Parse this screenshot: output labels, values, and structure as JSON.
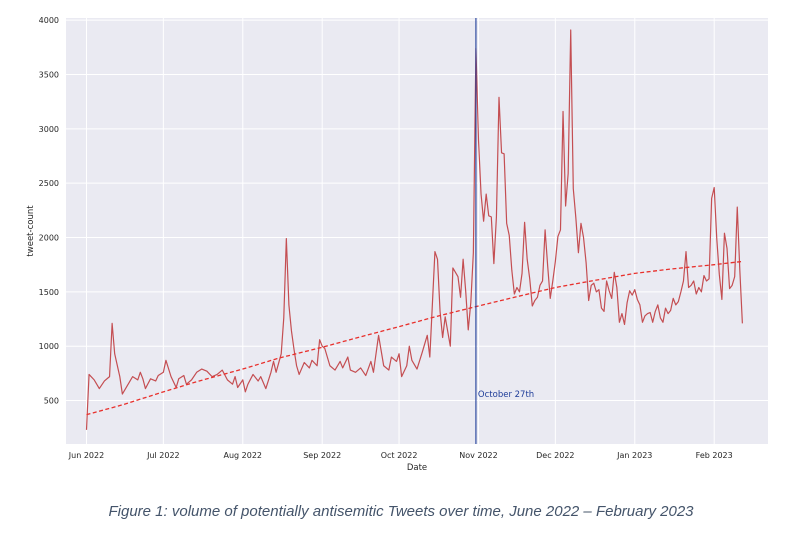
{
  "caption": "Figure 1: volume of potentially antisemitic Tweets over time, June 2022 – February 2023",
  "chart_data": {
    "type": "line",
    "title": "",
    "xlabel": "Date",
    "ylabel": "tweet-count",
    "x_ticks": [
      "2022-06-01",
      "2022-07-01",
      "2022-08-01",
      "2022-09-01",
      "2022-10-01",
      "2022-11-01",
      "2022-12-01",
      "2023-01-01",
      "2023-02-01"
    ],
    "x_tick_labels": [
      "Jun 2022",
      "Jul 2022",
      "Aug 2022",
      "Sep 2022",
      "Oct 2022",
      "Nov 2022",
      "Dec 2022",
      "Jan 2023",
      "Feb 2023"
    ],
    "y_ticks": [
      500,
      1000,
      1500,
      2000,
      2500,
      3000,
      3500,
      4000
    ],
    "xlim": [
      "2022-05-24",
      "2023-02-22"
    ],
    "ylim": [
      100,
      4020
    ],
    "grid": true,
    "background": "#eaeaf2",
    "series": [
      {
        "style": "solid",
        "color": "#c44e52",
        "points": [
          [
            "2022-06-01",
            230
          ],
          [
            "2022-06-02",
            740
          ],
          [
            "2022-06-04",
            690
          ],
          [
            "2022-06-06",
            610
          ],
          [
            "2022-06-08",
            680
          ],
          [
            "2022-06-10",
            720
          ],
          [
            "2022-06-11",
            1210
          ],
          [
            "2022-06-12",
            930
          ],
          [
            "2022-06-14",
            720
          ],
          [
            "2022-06-15",
            560
          ],
          [
            "2022-06-17",
            640
          ],
          [
            "2022-06-19",
            720
          ],
          [
            "2022-06-21",
            690
          ],
          [
            "2022-06-22",
            760
          ],
          [
            "2022-06-23",
            700
          ],
          [
            "2022-06-24",
            610
          ],
          [
            "2022-06-26",
            700
          ],
          [
            "2022-06-28",
            680
          ],
          [
            "2022-06-29",
            730
          ],
          [
            "2022-07-01",
            760
          ],
          [
            "2022-07-02",
            870
          ],
          [
            "2022-07-04",
            720
          ],
          [
            "2022-07-06",
            620
          ],
          [
            "2022-07-07",
            700
          ],
          [
            "2022-07-09",
            730
          ],
          [
            "2022-07-10",
            650
          ],
          [
            "2022-07-12",
            690
          ],
          [
            "2022-07-14",
            760
          ],
          [
            "2022-07-16",
            790
          ],
          [
            "2022-07-18",
            770
          ],
          [
            "2022-07-20",
            720
          ],
          [
            "2022-07-22",
            740
          ],
          [
            "2022-07-24",
            780
          ],
          [
            "2022-07-26",
            690
          ],
          [
            "2022-07-28",
            650
          ],
          [
            "2022-07-29",
            720
          ],
          [
            "2022-07-30",
            620
          ],
          [
            "2022-08-01",
            690
          ],
          [
            "2022-08-02",
            580
          ],
          [
            "2022-08-03",
            650
          ],
          [
            "2022-08-05",
            740
          ],
          [
            "2022-08-07",
            680
          ],
          [
            "2022-08-08",
            720
          ],
          [
            "2022-08-10",
            610
          ],
          [
            "2022-08-12",
            760
          ],
          [
            "2022-08-13",
            860
          ],
          [
            "2022-08-14",
            760
          ],
          [
            "2022-08-16",
            930
          ],
          [
            "2022-08-17",
            1260
          ],
          [
            "2022-08-18",
            1990
          ],
          [
            "2022-08-19",
            1380
          ],
          [
            "2022-08-20",
            1140
          ],
          [
            "2022-08-21",
            970
          ],
          [
            "2022-08-22",
            820
          ],
          [
            "2022-08-23",
            740
          ],
          [
            "2022-08-25",
            850
          ],
          [
            "2022-08-27",
            800
          ],
          [
            "2022-08-28",
            870
          ],
          [
            "2022-08-30",
            820
          ],
          [
            "2022-08-31",
            1060
          ],
          [
            "2022-09-01",
            1000
          ],
          [
            "2022-09-02",
            980
          ],
          [
            "2022-09-04",
            820
          ],
          [
            "2022-09-06",
            780
          ],
          [
            "2022-09-08",
            860
          ],
          [
            "2022-09-09",
            800
          ],
          [
            "2022-09-11",
            900
          ],
          [
            "2022-09-12",
            780
          ],
          [
            "2022-09-14",
            760
          ],
          [
            "2022-09-16",
            800
          ],
          [
            "2022-09-18",
            730
          ],
          [
            "2022-09-20",
            860
          ],
          [
            "2022-09-21",
            760
          ],
          [
            "2022-09-23",
            1100
          ],
          [
            "2022-09-25",
            820
          ],
          [
            "2022-09-27",
            780
          ],
          [
            "2022-09-28",
            900
          ],
          [
            "2022-09-30",
            860
          ],
          [
            "2022-10-01",
            930
          ],
          [
            "2022-10-02",
            720
          ],
          [
            "2022-10-04",
            820
          ],
          [
            "2022-10-05",
            1000
          ],
          [
            "2022-10-06",
            870
          ],
          [
            "2022-10-08",
            790
          ],
          [
            "2022-10-10",
            940
          ],
          [
            "2022-10-12",
            1100
          ],
          [
            "2022-10-13",
            900
          ],
          [
            "2022-10-15",
            1870
          ],
          [
            "2022-10-16",
            1800
          ],
          [
            "2022-10-17",
            1320
          ],
          [
            "2022-10-18",
            1080
          ],
          [
            "2022-10-19",
            1270
          ],
          [
            "2022-10-21",
            1000
          ],
          [
            "2022-10-22",
            1720
          ],
          [
            "2022-10-24",
            1640
          ],
          [
            "2022-10-25",
            1450
          ],
          [
            "2022-10-26",
            1800
          ],
          [
            "2022-10-27",
            1510
          ],
          [
            "2022-10-28",
            1150
          ],
          [
            "2022-10-29",
            1400
          ],
          [
            "2022-10-30",
            1860
          ],
          [
            "2022-10-31",
            3740
          ],
          [
            "2022-11-01",
            2900
          ],
          [
            "2022-11-02",
            2400
          ],
          [
            "2022-11-03",
            2150
          ],
          [
            "2022-11-04",
            2400
          ],
          [
            "2022-11-05",
            2200
          ],
          [
            "2022-11-06",
            2190
          ],
          [
            "2022-11-07",
            1760
          ],
          [
            "2022-11-08",
            2190
          ],
          [
            "2022-11-09",
            3290
          ],
          [
            "2022-11-10",
            2780
          ],
          [
            "2022-11-11",
            2770
          ],
          [
            "2022-11-12",
            2130
          ],
          [
            "2022-11-13",
            2020
          ],
          [
            "2022-11-14",
            1700
          ],
          [
            "2022-11-15",
            1480
          ],
          [
            "2022-11-16",
            1540
          ],
          [
            "2022-11-17",
            1500
          ],
          [
            "2022-11-18",
            1670
          ],
          [
            "2022-11-19",
            2140
          ],
          [
            "2022-11-20",
            1800
          ],
          [
            "2022-11-21",
            1620
          ],
          [
            "2022-11-22",
            1370
          ],
          [
            "2022-11-23",
            1420
          ],
          [
            "2022-11-24",
            1450
          ],
          [
            "2022-11-25",
            1560
          ],
          [
            "2022-11-26",
            1600
          ],
          [
            "2022-11-27",
            2070
          ],
          [
            "2022-11-28",
            1740
          ],
          [
            "2022-11-29",
            1440
          ],
          [
            "2022-11-30",
            1600
          ],
          [
            "2022-12-01",
            1780
          ],
          [
            "2022-12-02",
            2010
          ],
          [
            "2022-12-03",
            2070
          ],
          [
            "2022-12-04",
            3160
          ],
          [
            "2022-12-05",
            2290
          ],
          [
            "2022-12-06",
            2590
          ],
          [
            "2022-12-07",
            3910
          ],
          [
            "2022-12-08",
            2450
          ],
          [
            "2022-12-09",
            2180
          ],
          [
            "2022-12-10",
            1860
          ],
          [
            "2022-12-11",
            2130
          ],
          [
            "2022-12-12",
            2000
          ],
          [
            "2022-12-13",
            1770
          ],
          [
            "2022-12-14",
            1420
          ],
          [
            "2022-12-15",
            1560
          ],
          [
            "2022-12-16",
            1580
          ],
          [
            "2022-12-17",
            1500
          ],
          [
            "2022-12-18",
            1520
          ],
          [
            "2022-12-19",
            1350
          ],
          [
            "2022-12-20",
            1320
          ],
          [
            "2022-12-21",
            1600
          ],
          [
            "2022-12-22",
            1510
          ],
          [
            "2022-12-23",
            1440
          ],
          [
            "2022-12-24",
            1680
          ],
          [
            "2022-12-25",
            1540
          ],
          [
            "2022-12-26",
            1220
          ],
          [
            "2022-12-27",
            1300
          ],
          [
            "2022-12-28",
            1200
          ],
          [
            "2022-12-29",
            1400
          ],
          [
            "2022-12-30",
            1510
          ],
          [
            "2022-12-31",
            1470
          ],
          [
            "2023-01-01",
            1520
          ],
          [
            "2023-01-02",
            1430
          ],
          [
            "2023-01-03",
            1380
          ],
          [
            "2023-01-04",
            1220
          ],
          [
            "2023-01-05",
            1280
          ],
          [
            "2023-01-06",
            1300
          ],
          [
            "2023-01-07",
            1310
          ],
          [
            "2023-01-08",
            1220
          ],
          [
            "2023-01-09",
            1320
          ],
          [
            "2023-01-10",
            1380
          ],
          [
            "2023-01-11",
            1260
          ],
          [
            "2023-01-12",
            1220
          ],
          [
            "2023-01-13",
            1350
          ],
          [
            "2023-01-14",
            1300
          ],
          [
            "2023-01-15",
            1330
          ],
          [
            "2023-01-16",
            1440
          ],
          [
            "2023-01-17",
            1380
          ],
          [
            "2023-01-18",
            1410
          ],
          [
            "2023-01-19",
            1500
          ],
          [
            "2023-01-20",
            1600
          ],
          [
            "2023-01-21",
            1870
          ],
          [
            "2023-01-22",
            1540
          ],
          [
            "2023-01-23",
            1560
          ],
          [
            "2023-01-24",
            1600
          ],
          [
            "2023-01-25",
            1480
          ],
          [
            "2023-01-26",
            1540
          ],
          [
            "2023-01-27",
            1500
          ],
          [
            "2023-01-28",
            1650
          ],
          [
            "2023-01-29",
            1600
          ],
          [
            "2023-01-30",
            1620
          ],
          [
            "2023-01-31",
            2360
          ],
          [
            "2023-02-01",
            2460
          ],
          [
            "2023-02-02",
            1990
          ],
          [
            "2023-02-03",
            1660
          ],
          [
            "2023-02-04",
            1430
          ],
          [
            "2023-02-05",
            2040
          ],
          [
            "2023-02-06",
            1900
          ],
          [
            "2023-02-07",
            1530
          ],
          [
            "2023-02-08",
            1560
          ],
          [
            "2023-02-09",
            1640
          ],
          [
            "2023-02-10",
            2280
          ],
          [
            "2023-02-11",
            1700
          ],
          [
            "2023-02-12",
            1210
          ]
        ]
      },
      {
        "style": "dashed",
        "color": "#e8302c",
        "points": [
          [
            "2022-06-01",
            370
          ],
          [
            "2022-06-15",
            460
          ],
          [
            "2022-07-01",
            580
          ],
          [
            "2022-07-15",
            680
          ],
          [
            "2022-08-01",
            790
          ],
          [
            "2022-08-15",
            890
          ],
          [
            "2022-09-01",
            990
          ],
          [
            "2022-09-15",
            1080
          ],
          [
            "2022-10-01",
            1180
          ],
          [
            "2022-10-15",
            1270
          ],
          [
            "2022-11-01",
            1370
          ],
          [
            "2022-11-15",
            1450
          ],
          [
            "2022-12-01",
            1540
          ],
          [
            "2022-12-15",
            1600
          ],
          [
            "2023-01-01",
            1670
          ],
          [
            "2023-01-15",
            1710
          ],
          [
            "2023-02-01",
            1750
          ],
          [
            "2023-02-12",
            1780
          ]
        ]
      }
    ],
    "annotations": [
      {
        "type": "vline",
        "x": "2022-10-31",
        "color": "#1f3d99",
        "label": "October 27th",
        "label_y": 560
      }
    ]
  }
}
